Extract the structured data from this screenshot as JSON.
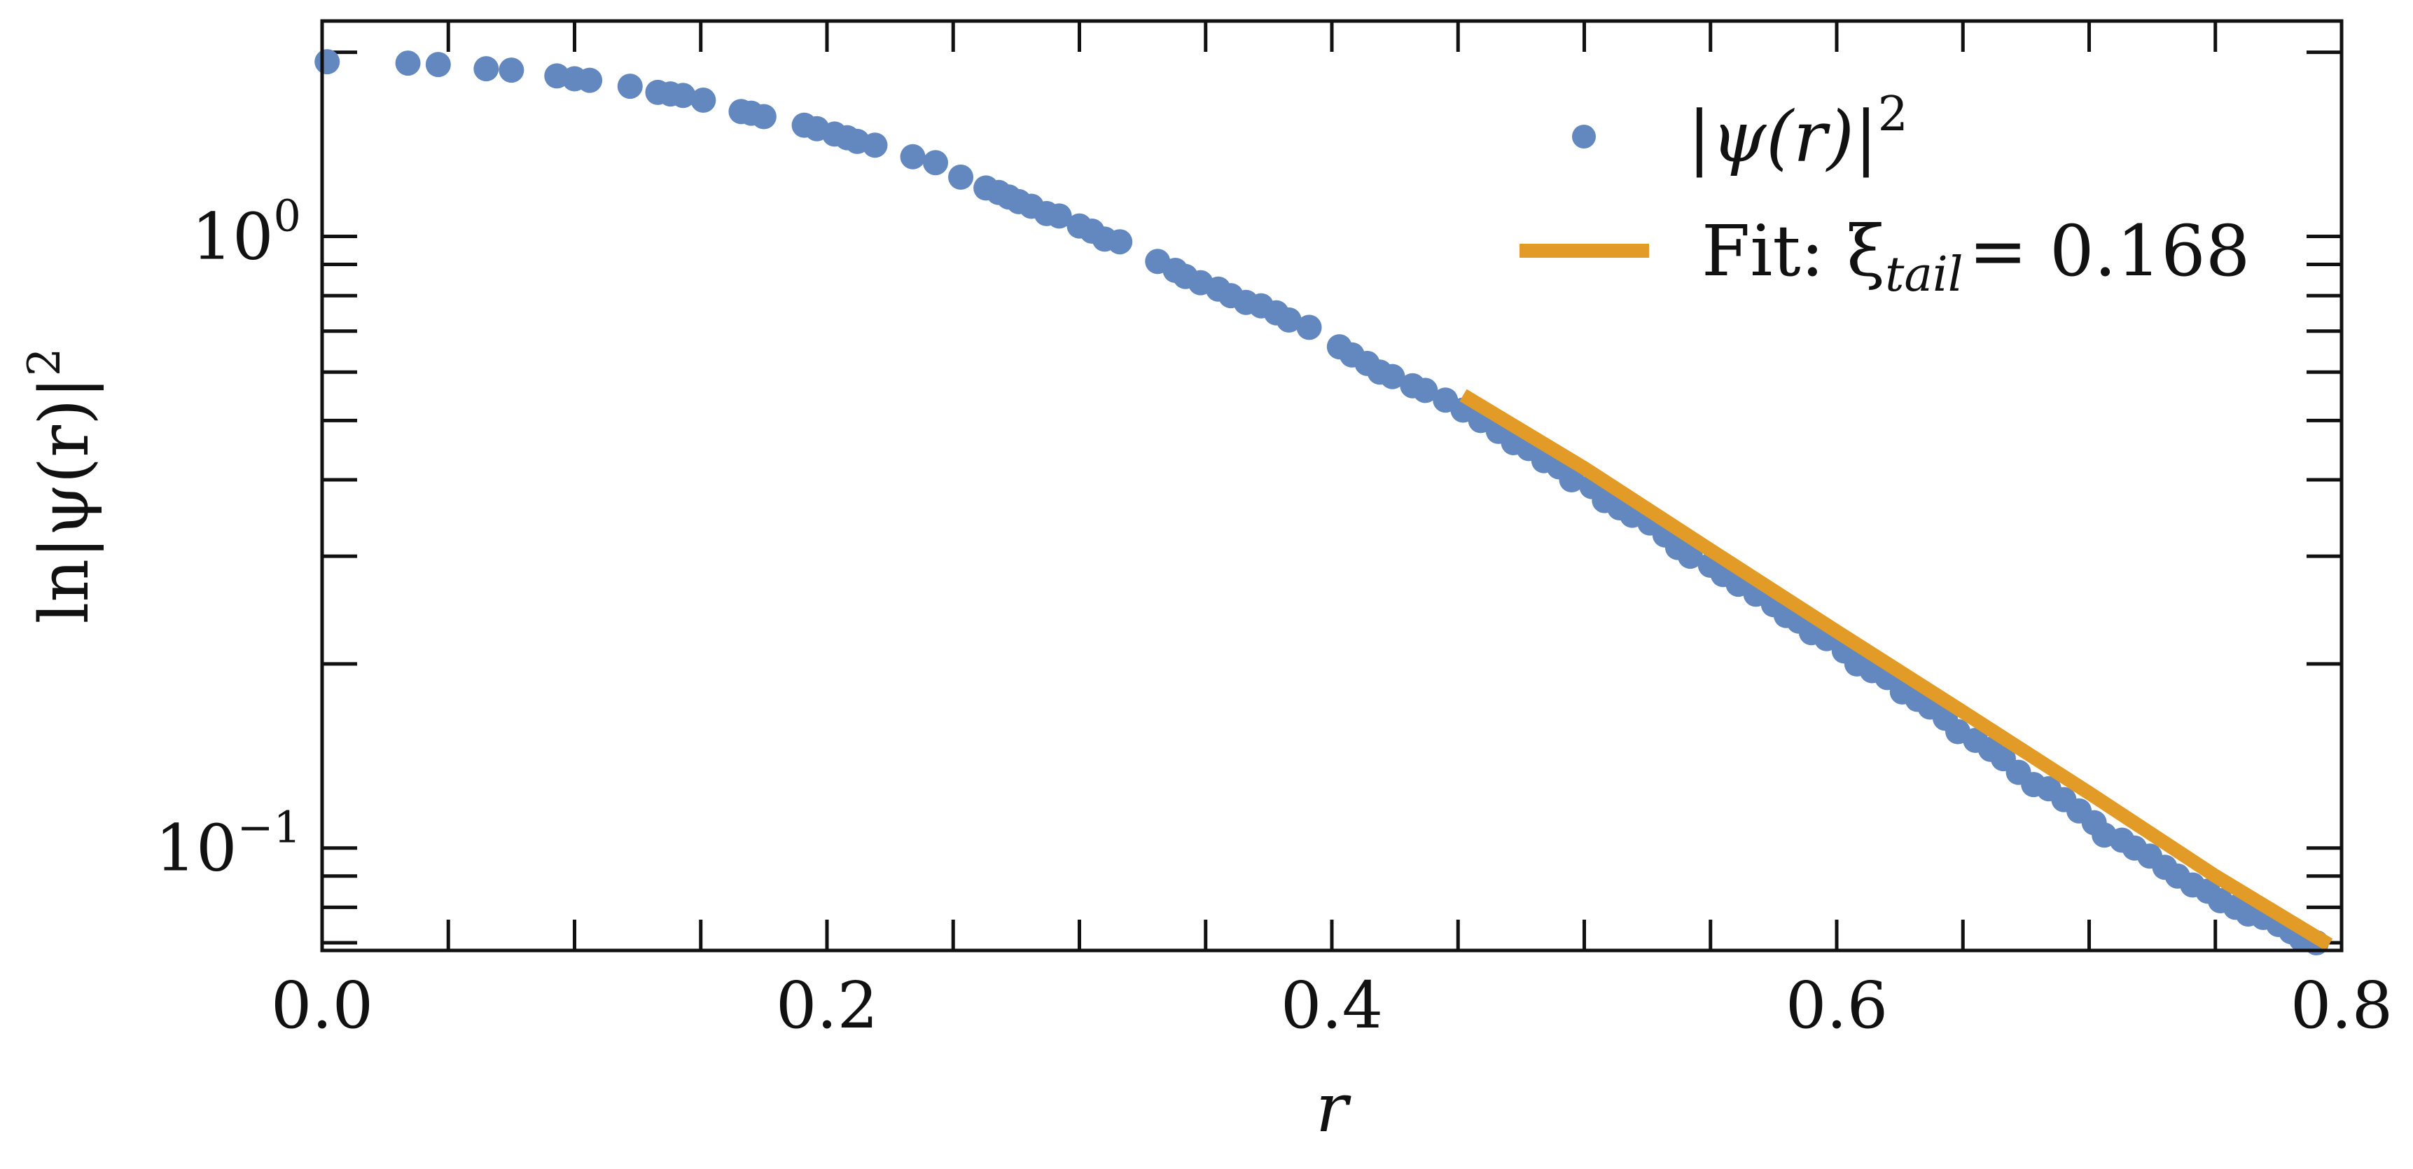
{
  "chart_data": {
    "type": "scatter",
    "xlabel": "r",
    "ylabel": "ln|ψ(r)|",
    "ylabel_superscript": "2",
    "yscale": "log",
    "xlim": [
      0.0,
      0.8
    ],
    "ylim": [
      0.068,
      2.25
    ],
    "xticks": [
      0.0,
      0.2,
      0.4,
      0.6,
      0.8
    ],
    "xtick_labels": [
      "0.0",
      "0.2",
      "0.4",
      "0.6",
      "0.8"
    ],
    "yticks": [
      1.0,
      0.1
    ],
    "ytick_labels": [
      {
        "base": "10",
        "exp": "0"
      },
      {
        "base": "10",
        "exp": "−1"
      }
    ],
    "grid": false,
    "legend_position": "top-right",
    "colors": {
      "points": "#6388bf",
      "fit": "#e29b26"
    },
    "series": [
      {
        "name": "|ψ(r)|",
        "name_superscript": "2",
        "kind": "scatter",
        "x": [
          0.002,
          0.034,
          0.046,
          0.065,
          0.075,
          0.093,
          0.1,
          0.106,
          0.122,
          0.133,
          0.138,
          0.143,
          0.151,
          0.166,
          0.17,
          0.175,
          0.191,
          0.196,
          0.203,
          0.208,
          0.212,
          0.219,
          0.234,
          0.243,
          0.253,
          0.263,
          0.268,
          0.272,
          0.276,
          0.281,
          0.287,
          0.292,
          0.3,
          0.305,
          0.31,
          0.316,
          0.331,
          0.338,
          0.342,
          0.348,
          0.355,
          0.36,
          0.366,
          0.372,
          0.378,
          0.383,
          0.391,
          0.403,
          0.408,
          0.414,
          0.419,
          0.424,
          0.432,
          0.437,
          0.445,
          0.452,
          0.459,
          0.466,
          0.472,
          0.478,
          0.484,
          0.49,
          0.495,
          0.503,
          0.508,
          0.514,
          0.519,
          0.526,
          0.532,
          0.537,
          0.542,
          0.55,
          0.555,
          0.561,
          0.568,
          0.575,
          0.58,
          0.585,
          0.59,
          0.596,
          0.603,
          0.608,
          0.614,
          0.62,
          0.626,
          0.632,
          0.637,
          0.643,
          0.648,
          0.655,
          0.661,
          0.666,
          0.672,
          0.678,
          0.684,
          0.69,
          0.696,
          0.702,
          0.706,
          0.713,
          0.718,
          0.724,
          0.73,
          0.735,
          0.741,
          0.747,
          0.752,
          0.758,
          0.763,
          0.769,
          0.775,
          0.78,
          0.784,
          0.79
        ],
        "y": [
          1.93,
          1.92,
          1.91,
          1.88,
          1.87,
          1.83,
          1.81,
          1.8,
          1.76,
          1.72,
          1.71,
          1.7,
          1.67,
          1.6,
          1.59,
          1.57,
          1.52,
          1.5,
          1.47,
          1.45,
          1.43,
          1.41,
          1.35,
          1.32,
          1.25,
          1.2,
          1.18,
          1.16,
          1.14,
          1.12,
          1.09,
          1.08,
          1.04,
          1.02,
          0.99,
          0.98,
          0.91,
          0.88,
          0.86,
          0.84,
          0.82,
          0.8,
          0.78,
          0.77,
          0.75,
          0.73,
          0.71,
          0.66,
          0.64,
          0.62,
          0.6,
          0.59,
          0.57,
          0.56,
          0.54,
          0.52,
          0.5,
          0.48,
          0.46,
          0.45,
          0.43,
          0.42,
          0.4,
          0.39,
          0.37,
          0.36,
          0.35,
          0.34,
          0.325,
          0.31,
          0.3,
          0.29,
          0.28,
          0.27,
          0.26,
          0.25,
          0.24,
          0.235,
          0.225,
          0.22,
          0.21,
          0.2,
          0.195,
          0.19,
          0.18,
          0.175,
          0.17,
          0.163,
          0.155,
          0.15,
          0.145,
          0.14,
          0.133,
          0.127,
          0.125,
          0.12,
          0.115,
          0.11,
          0.105,
          0.103,
          0.1,
          0.097,
          0.093,
          0.09,
          0.087,
          0.085,
          0.082,
          0.08,
          0.078,
          0.077,
          0.075,
          0.073,
          0.071,
          0.07
        ]
      },
      {
        "name": "Fit: ξ",
        "name_subscript": "tail",
        "name_value": "= 0.168",
        "kind": "line",
        "x": [
          0.452,
          0.5,
          0.55,
          0.6,
          0.65,
          0.7,
          0.75,
          0.795
        ],
        "y": [
          0.55,
          0.418,
          0.307,
          0.226,
          0.167,
          0.123,
          0.09,
          0.0695
        ]
      }
    ]
  }
}
